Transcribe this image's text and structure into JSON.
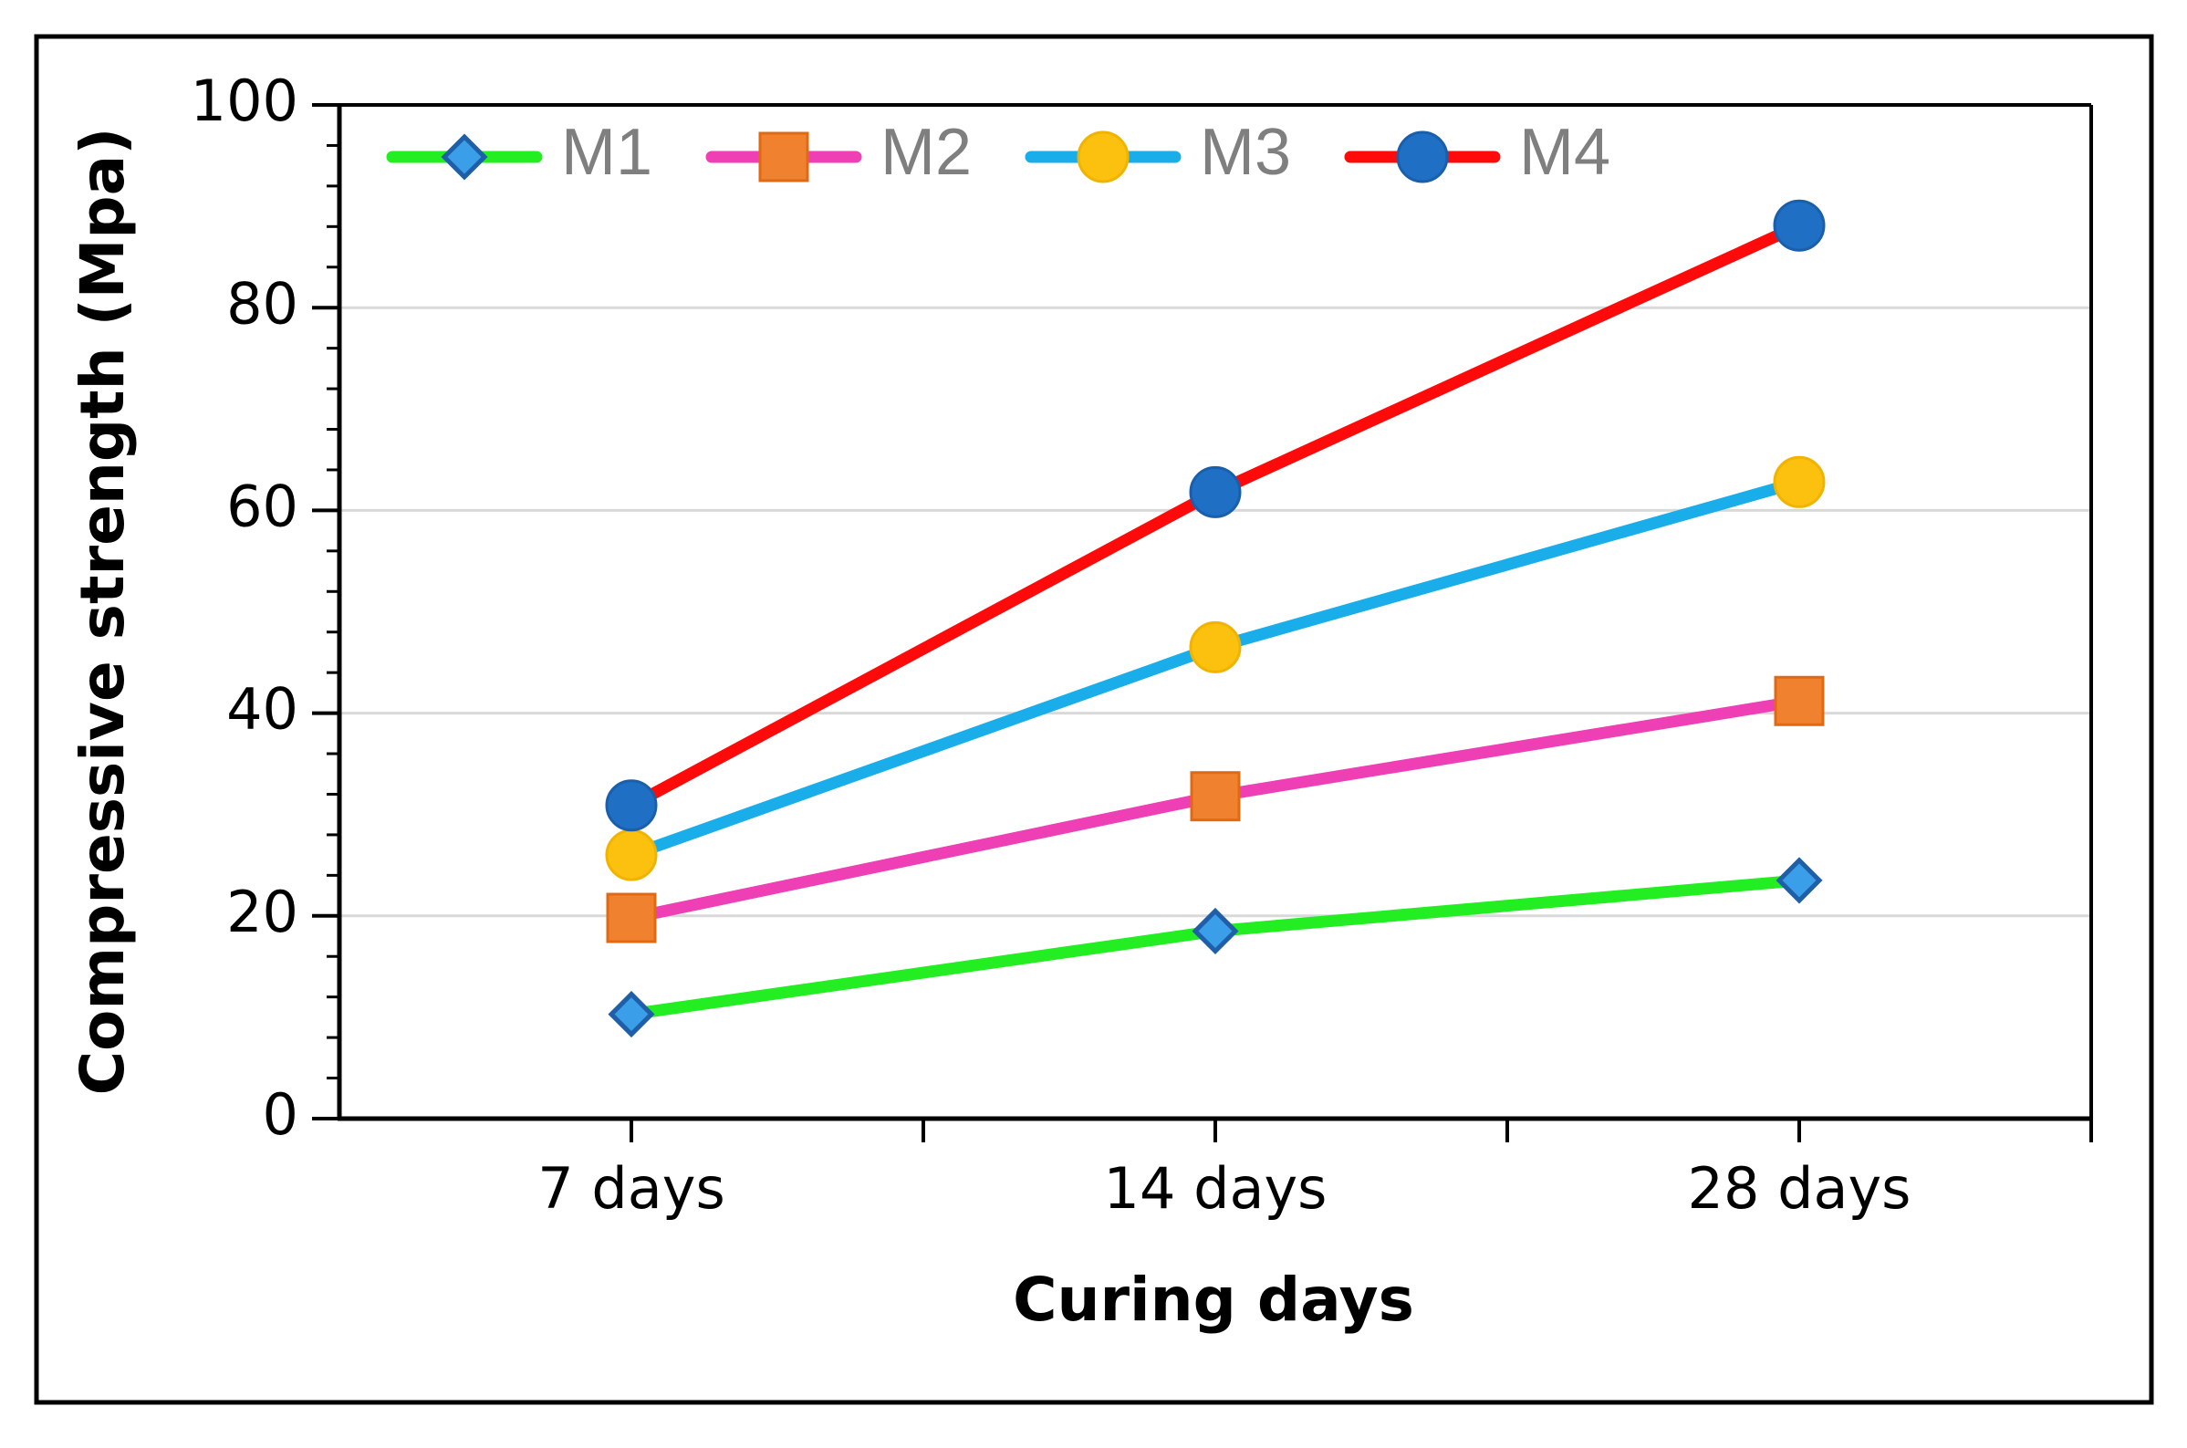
{
  "chart_data": {
    "type": "line",
    "categories": [
      "7 days",
      "14 days",
      "28 days"
    ],
    "series": [
      {
        "name": "M1",
        "values": [
          10.3,
          18.5,
          23.5
        ],
        "line_color": "#22ee22",
        "marker": "diamond",
        "marker_color": "#3a9ee8",
        "marker_stroke": "#1f5fa8"
      },
      {
        "name": "M2",
        "values": [
          19.8,
          31.8,
          41.2
        ],
        "line_color": "#ee3fb5",
        "marker": "square",
        "marker_color": "#f0812e",
        "marker_stroke": "#e06a14"
      },
      {
        "name": "M3",
        "values": [
          26.0,
          46.5,
          62.8
        ],
        "line_color": "#19aeea",
        "marker": "circle",
        "marker_color": "#fcc10f",
        "marker_stroke": "#f0b400"
      },
      {
        "name": "M4",
        "values": [
          30.9,
          61.8,
          88.1
        ],
        "line_color": "#ff0a0a",
        "marker": "circle",
        "marker_color": "#1f6fc4",
        "marker_stroke": "#1a5fab"
      }
    ],
    "title": "",
    "xlabel": "Curing days",
    "ylabel": "Compressive strength (Mpa)",
    "ylim": [
      0,
      100
    ],
    "y_major_ticks": [
      0,
      20,
      40,
      60,
      80,
      100
    ],
    "y_minor_step": 4,
    "gridlines": "horizontal-major",
    "legend_position": "top-left"
  }
}
